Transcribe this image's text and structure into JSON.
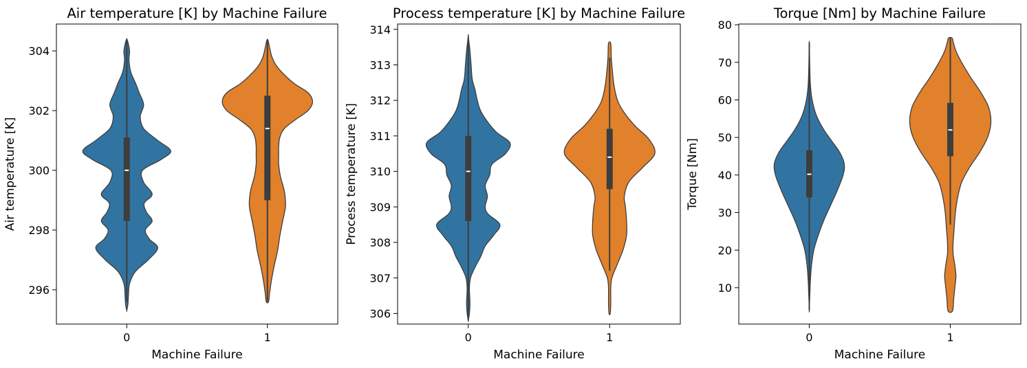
{
  "chart_data": [
    {
      "type": "violin",
      "title": "Air temperature [K] by Machine Failure",
      "xlabel": "Machine Failure",
      "ylabel": "Air temperature [K]",
      "categories": [
        "0",
        "1"
      ],
      "ylim": [
        294.85,
        304.9
      ],
      "yticks": [
        296,
        298,
        300,
        302,
        304
      ],
      "violins": [
        {
          "category": "0",
          "color": "#3274a1",
          "median": 300.0,
          "q1": 298.3,
          "q3": 301.1,
          "whisker_low": 295.6,
          "whisker_high": 304.4,
          "profile": [
            [
              295.3,
              0.0
            ],
            [
              295.5,
              0.02
            ],
            [
              295.8,
              0.03
            ],
            [
              296.2,
              0.05
            ],
            [
              296.6,
              0.15
            ],
            [
              297.0,
              0.38
            ],
            [
              297.4,
              0.55
            ],
            [
              297.7,
              0.4
            ],
            [
              298.0,
              0.33
            ],
            [
              298.3,
              0.45
            ],
            [
              298.6,
              0.35
            ],
            [
              298.9,
              0.31
            ],
            [
              299.2,
              0.45
            ],
            [
              299.6,
              0.3
            ],
            [
              300.0,
              0.28
            ],
            [
              300.35,
              0.6
            ],
            [
              300.65,
              0.78
            ],
            [
              301.0,
              0.55
            ],
            [
              301.4,
              0.3
            ],
            [
              301.8,
              0.24
            ],
            [
              302.2,
              0.3
            ],
            [
              302.6,
              0.22
            ],
            [
              302.9,
              0.16
            ],
            [
              303.3,
              0.07
            ],
            [
              303.7,
              0.04
            ],
            [
              304.0,
              0.05
            ],
            [
              304.3,
              0.02
            ],
            [
              304.4,
              0.0
            ]
          ]
        },
        {
          "category": "1",
          "color": "#e1812c",
          "median": 301.4,
          "q1": 299.0,
          "q3": 302.5,
          "whisker_low": 295.6,
          "whisker_high": 304.4,
          "profile": [
            [
              295.6,
              0.02
            ],
            [
              295.9,
              0.04
            ],
            [
              296.3,
              0.07
            ],
            [
              296.8,
              0.12
            ],
            [
              297.3,
              0.18
            ],
            [
              297.8,
              0.22
            ],
            [
              298.3,
              0.27
            ],
            [
              298.8,
              0.32
            ],
            [
              299.3,
              0.3
            ],
            [
              299.8,
              0.23
            ],
            [
              300.2,
              0.2
            ],
            [
              300.5,
              0.2
            ],
            [
              300.8,
              0.2
            ],
            [
              301.1,
              0.22
            ],
            [
              301.4,
              0.3
            ],
            [
              301.7,
              0.5
            ],
            [
              302.0,
              0.72
            ],
            [
              302.3,
              0.8
            ],
            [
              302.6,
              0.72
            ],
            [
              302.9,
              0.48
            ],
            [
              303.2,
              0.3
            ],
            [
              303.5,
              0.16
            ],
            [
              303.8,
              0.08
            ],
            [
              304.1,
              0.04
            ],
            [
              304.35,
              0.01
            ]
          ]
        }
      ]
    },
    {
      "type": "violin",
      "title": "Process temperature [K] by Machine Failure",
      "xlabel": "Machine Failure",
      "ylabel": "Process temperature [K]",
      "categories": [
        "0",
        "1"
      ],
      "ylim": [
        305.7,
        314.15
      ],
      "yticks": [
        306,
        307,
        308,
        309,
        310,
        311,
        312,
        313,
        314
      ],
      "violins": [
        {
          "category": "0",
          "color": "#3274a1",
          "median": 310.0,
          "q1": 308.6,
          "q3": 311.0,
          "whisker_low": 305.8,
          "whisker_high": 313.8,
          "profile": [
            [
              305.8,
              0.0
            ],
            [
              306.0,
              0.02
            ],
            [
              306.3,
              0.03
            ],
            [
              306.7,
              0.02
            ],
            [
              307.0,
              0.04
            ],
            [
              307.3,
              0.12
            ],
            [
              307.6,
              0.22
            ],
            [
              307.9,
              0.3
            ],
            [
              308.2,
              0.45
            ],
            [
              308.5,
              0.56
            ],
            [
              308.8,
              0.35
            ],
            [
              309.0,
              0.3
            ],
            [
              309.3,
              0.34
            ],
            [
              309.6,
              0.3
            ],
            [
              309.9,
              0.38
            ],
            [
              310.2,
              0.42
            ],
            [
              310.5,
              0.66
            ],
            [
              310.8,
              0.74
            ],
            [
              311.1,
              0.5
            ],
            [
              311.4,
              0.34
            ],
            [
              311.7,
              0.22
            ],
            [
              312.0,
              0.16
            ],
            [
              312.3,
              0.12
            ],
            [
              312.6,
              0.07
            ],
            [
              313.0,
              0.05
            ],
            [
              313.4,
              0.03
            ],
            [
              313.8,
              0.0
            ]
          ]
        },
        {
          "category": "1",
          "color": "#e1812c",
          "median": 310.4,
          "q1": 309.5,
          "q3": 311.2,
          "whisker_low": 307.2,
          "whisker_high": 313.2,
          "profile": [
            [
              306.0,
              0.01
            ],
            [
              306.3,
              0.02
            ],
            [
              306.7,
              0.02
            ],
            [
              307.0,
              0.04
            ],
            [
              307.4,
              0.14
            ],
            [
              307.8,
              0.24
            ],
            [
              308.2,
              0.3
            ],
            [
              308.6,
              0.3
            ],
            [
              309.0,
              0.28
            ],
            [
              309.3,
              0.26
            ],
            [
              309.7,
              0.34
            ],
            [
              310.1,
              0.58
            ],
            [
              310.5,
              0.8
            ],
            [
              310.9,
              0.7
            ],
            [
              311.3,
              0.44
            ],
            [
              311.7,
              0.24
            ],
            [
              312.0,
              0.14
            ],
            [
              312.4,
              0.08
            ],
            [
              312.8,
              0.05
            ],
            [
              313.2,
              0.03
            ],
            [
              313.6,
              0.02
            ]
          ]
        }
      ]
    },
    {
      "type": "violin",
      "title": "Torque [Nm] by Machine Failure",
      "xlabel": "Machine Failure",
      "ylabel": "Torque [Nm]",
      "categories": [
        "0",
        "1"
      ],
      "ylim": [
        0.3,
        80.2
      ],
      "yticks": [
        10,
        20,
        30,
        40,
        50,
        60,
        70,
        80
      ],
      "violins": [
        {
          "category": "0",
          "color": "#3274a1",
          "median": 40.2,
          "q1": 34.0,
          "q3": 46.6,
          "whisker_low": 4.0,
          "whisker_high": 75.2,
          "profile": [
            [
              4.0,
              0.0
            ],
            [
              8.0,
              0.01
            ],
            [
              12.0,
              0.02
            ],
            [
              16.0,
              0.04
            ],
            [
              20.0,
              0.08
            ],
            [
              24.0,
              0.16
            ],
            [
              28.0,
              0.26
            ],
            [
              32.0,
              0.38
            ],
            [
              36.0,
              0.5
            ],
            [
              40.0,
              0.6
            ],
            [
              43.0,
              0.62
            ],
            [
              46.0,
              0.54
            ],
            [
              49.0,
              0.4
            ],
            [
              52.0,
              0.26
            ],
            [
              55.0,
              0.15
            ],
            [
              58.0,
              0.08
            ],
            [
              61.0,
              0.04
            ],
            [
              64.0,
              0.02
            ],
            [
              68.0,
              0.01
            ],
            [
              72.0,
              0.005
            ],
            [
              75.2,
              0.0
            ]
          ]
        },
        {
          "category": "1",
          "color": "#e1812c",
          "median": 52.0,
          "q1": 45.0,
          "q3": 59.2,
          "whisker_low": 26.8,
          "whisker_high": 76.5,
          "profile": [
            [
              3.8,
              0.04
            ],
            [
              7.0,
              0.06
            ],
            [
              10.0,
              0.08
            ],
            [
              13.0,
              0.1
            ],
            [
              16.0,
              0.08
            ],
            [
              19.0,
              0.05
            ],
            [
              22.0,
              0.05
            ],
            [
              26.0,
              0.07
            ],
            [
              30.0,
              0.09
            ],
            [
              34.0,
              0.13
            ],
            [
              38.0,
              0.2
            ],
            [
              42.0,
              0.34
            ],
            [
              46.0,
              0.52
            ],
            [
              50.0,
              0.66
            ],
            [
              54.0,
              0.72
            ],
            [
              58.0,
              0.68
            ],
            [
              62.0,
              0.54
            ],
            [
              66.0,
              0.36
            ],
            [
              70.0,
              0.2
            ],
            [
              73.0,
              0.1
            ],
            [
              75.5,
              0.05
            ],
            [
              76.5,
              0.03
            ]
          ]
        }
      ]
    }
  ]
}
